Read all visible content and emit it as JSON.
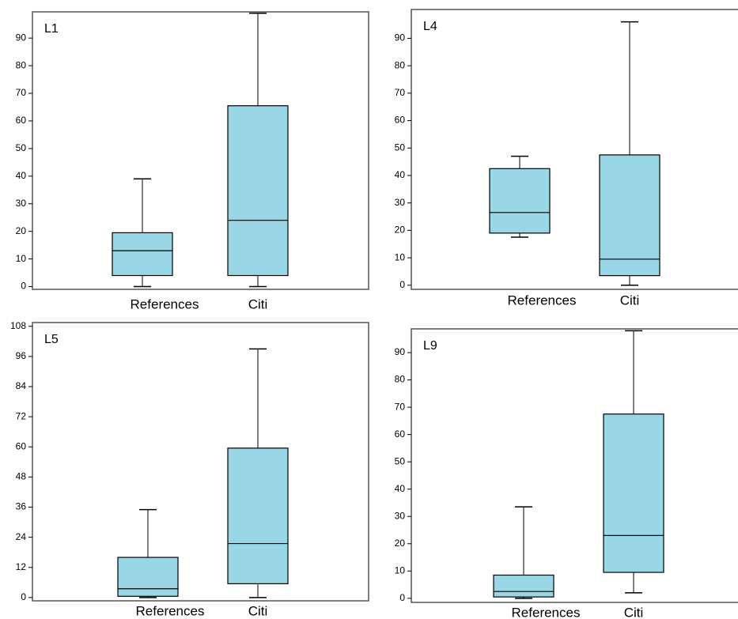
{
  "chart_data": [
    {
      "type": "box",
      "title": "L1",
      "categories": [
        "References",
        "Citi"
      ],
      "color": "#99d7e6",
      "boxes": [
        {
          "min": 0,
          "q1": 4,
          "median": 13,
          "q3": 19.5,
          "max": 39
        },
        {
          "min": 0,
          "q1": 4,
          "median": 24,
          "q3": 65.5,
          "max": 99
        }
      ],
      "ylim": [
        -1,
        99.5
      ],
      "yticks": [
        0,
        10,
        20,
        30,
        40,
        50,
        60,
        70,
        80,
        90
      ]
    },
    {
      "type": "box",
      "title": "L4",
      "categories": [
        "References",
        "Citi"
      ],
      "color": "#99d7e6",
      "boxes": [
        {
          "min": 17.5,
          "q1": 19,
          "median": 26.5,
          "q3": 42.5,
          "max": 47
        },
        {
          "min": 0,
          "q1": 3.5,
          "median": 9.5,
          "q3": 47.5,
          "max": 96
        }
      ],
      "ylim": [
        -1.5,
        100.5
      ],
      "yticks": [
        0,
        10,
        20,
        30,
        40,
        50,
        60,
        70,
        80,
        90
      ]
    },
    {
      "type": "box",
      "title": "L5",
      "categories": [
        "References",
        "Citi"
      ],
      "color": "#99d7e6",
      "boxes": [
        {
          "min": 0,
          "q1": 0.5,
          "median": 3.5,
          "q3": 16,
          "max": 35
        },
        {
          "min": 0,
          "q1": 5.5,
          "median": 21.5,
          "q3": 59.5,
          "max": 99
        }
      ],
      "ylim": [
        -1.3,
        109.5
      ],
      "yticks": [
        0,
        12,
        24,
        36,
        48,
        60,
        72,
        84,
        96,
        108
      ]
    },
    {
      "type": "box",
      "title": "L9",
      "categories": [
        "References",
        "Citi"
      ],
      "color": "#99d7e6",
      "boxes": [
        {
          "min": 0,
          "q1": 0.5,
          "median": 2.5,
          "q3": 8.5,
          "max": 33.5
        },
        {
          "min": 2,
          "q1": 9.5,
          "median": 23,
          "q3": 67.5,
          "max": 98
        }
      ],
      "ylim": [
        -1.5,
        98.7
      ],
      "yticks": [
        0,
        10,
        20,
        30,
        40,
        50,
        60,
        70,
        80,
        90
      ]
    }
  ]
}
